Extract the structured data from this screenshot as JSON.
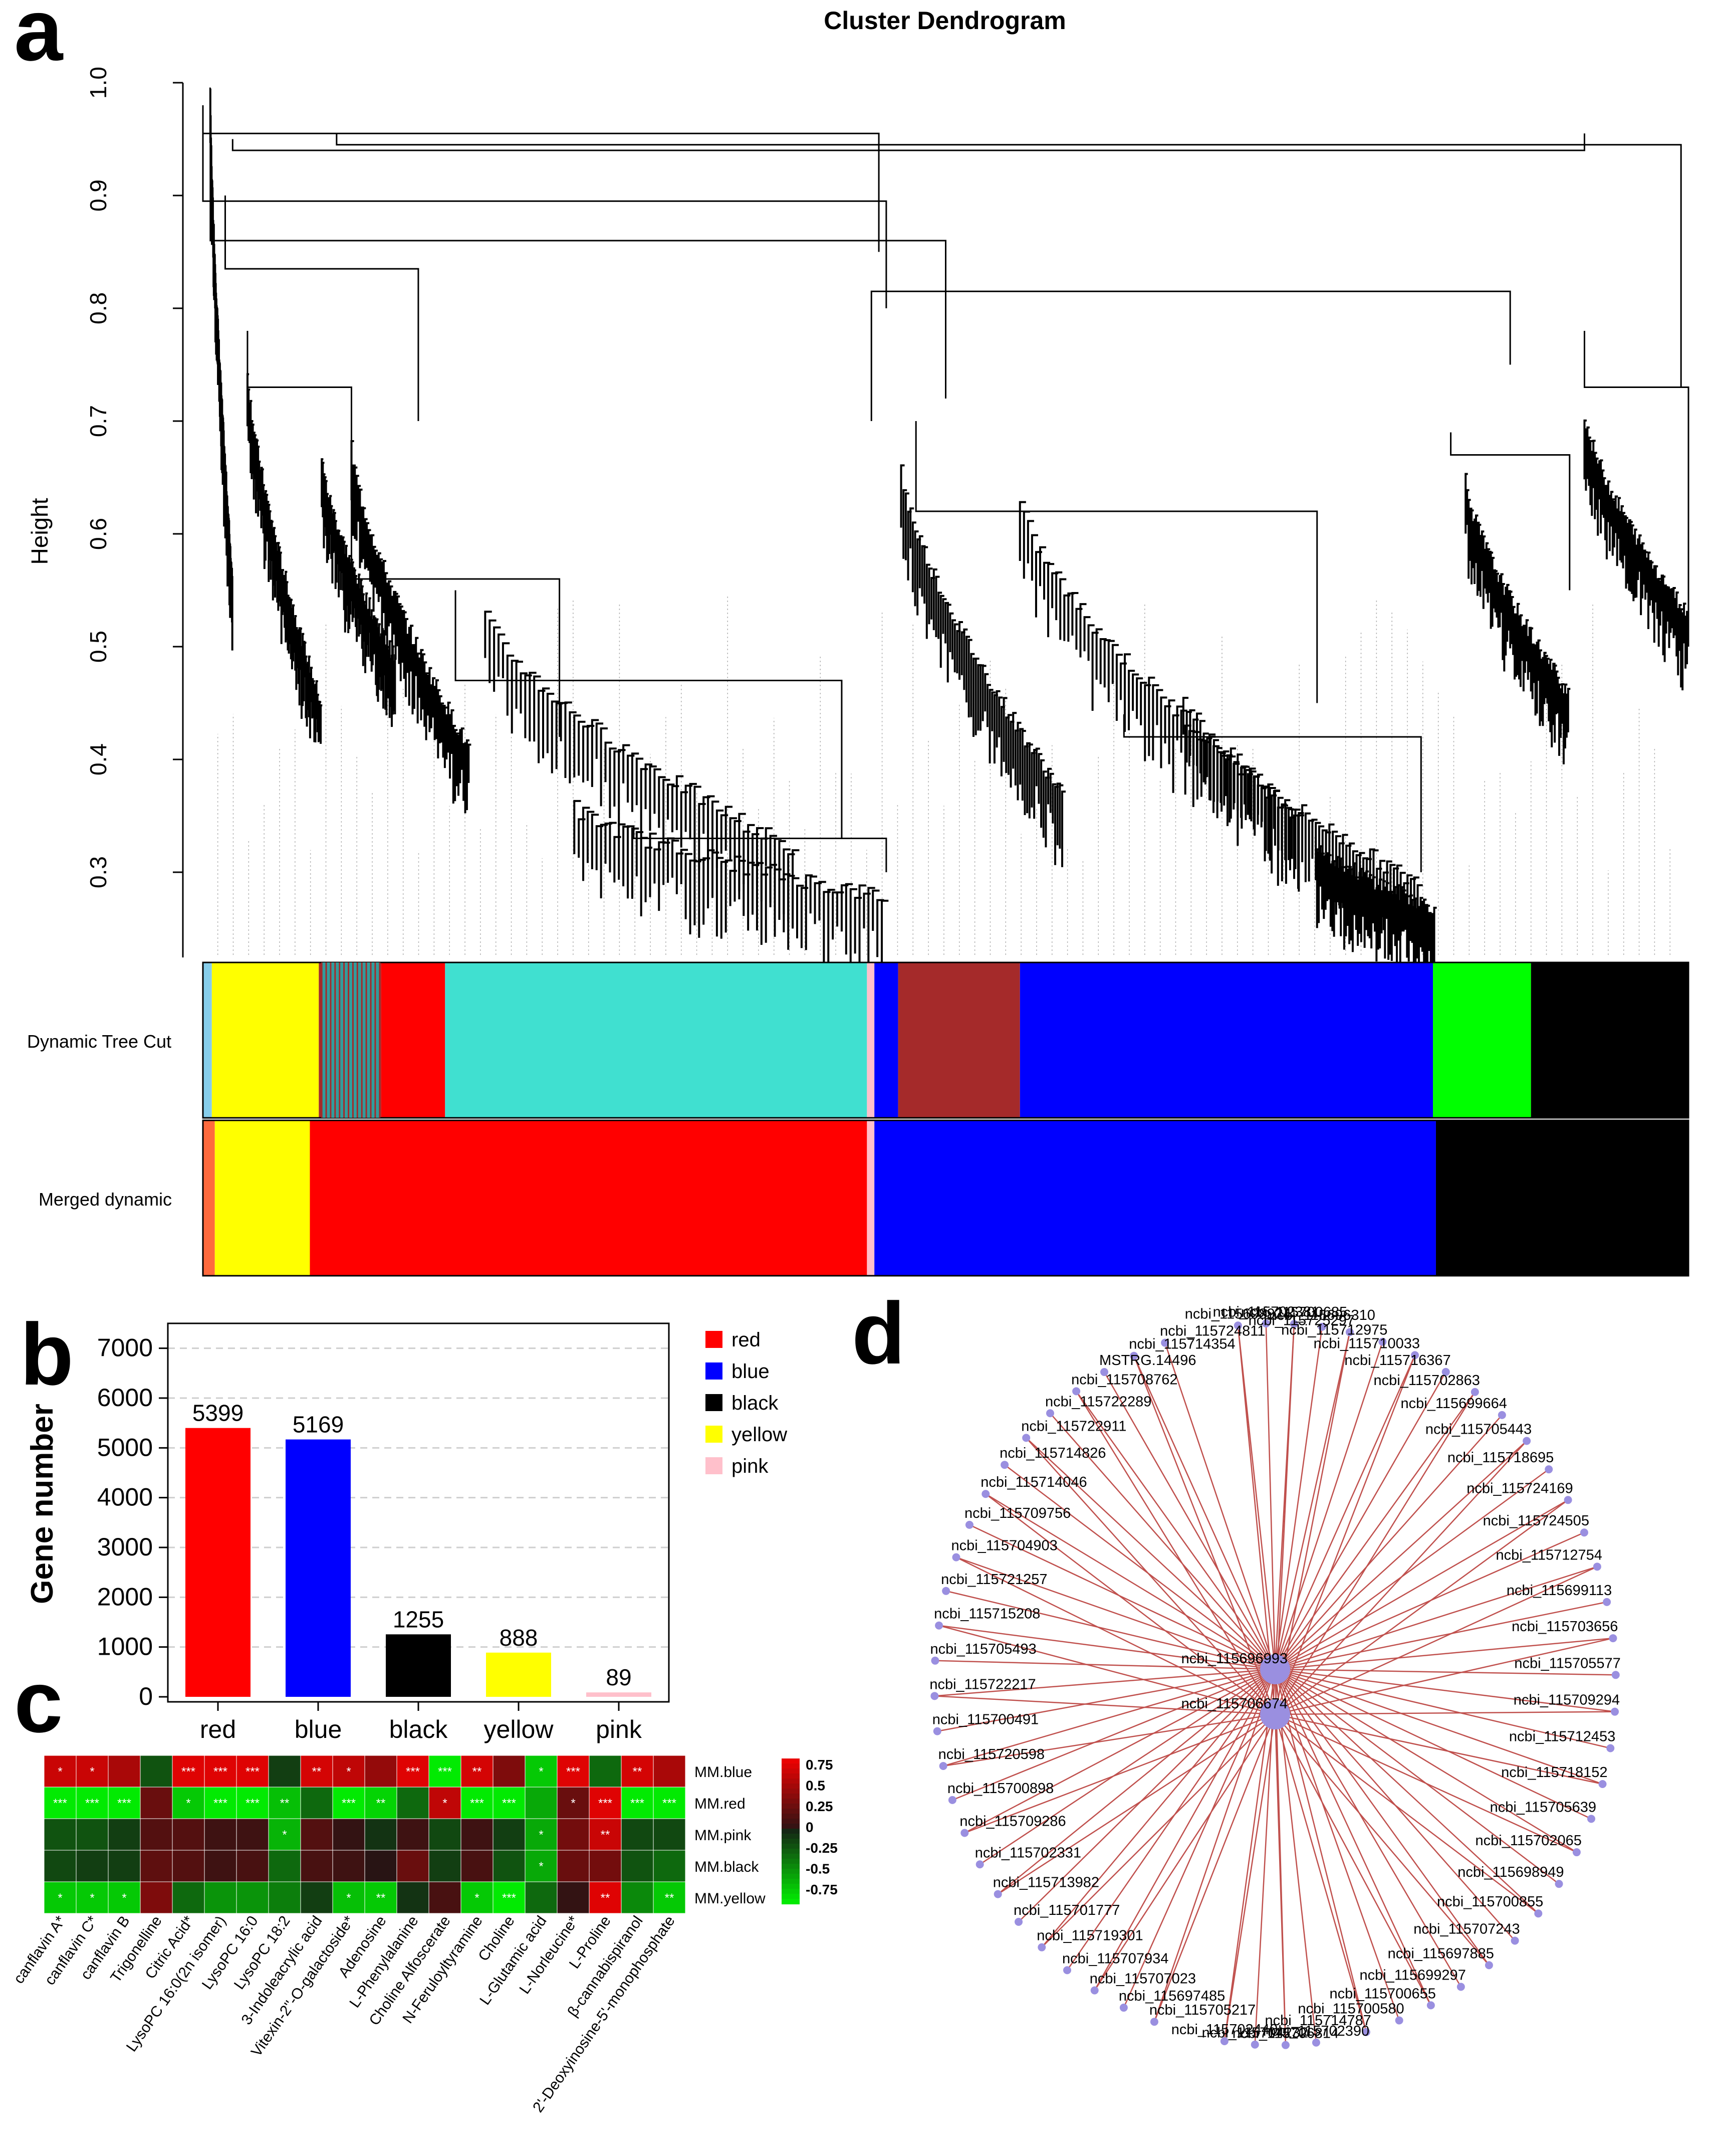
{
  "panels": {
    "a": "a",
    "b": "b",
    "c": "c",
    "d": "d"
  },
  "chart_data": [
    {
      "type": "dendrogram",
      "panel": "a",
      "title": "Cluster Dendrogram",
      "ylabel": "Height",
      "ylim": [
        0.25,
        1.0
      ],
      "yticks": [
        "0.3",
        "0.4",
        "0.5",
        "0.6",
        "0.7",
        "0.8",
        "0.9",
        "1.0"
      ],
      "tracks": [
        {
          "label": "Dynamic Tree Cut",
          "segments": [
            {
              "color": "#87ceeb",
              "from": 0,
              "to": 0.006
            },
            {
              "color": "#ffff00",
              "from": 0.006,
              "to": 0.078
            },
            {
              "color": "#a52a2a",
              "from": 0.078,
              "to": 0.12
            },
            {
              "color": "#ff0000",
              "from": 0.12,
              "to": 0.163
            },
            {
              "color": "#40e0d0",
              "from": 0.163,
              "to": 0.447
            },
            {
              "color": "#ffc0cb",
              "from": 0.447,
              "to": 0.452
            },
            {
              "color": "#0000ff",
              "from": 0.452,
              "to": 0.468
            },
            {
              "color": "#a52a2a",
              "from": 0.468,
              "to": 0.55
            },
            {
              "color": "#0000ff",
              "from": 0.55,
              "to": 0.828
            },
            {
              "color": "#00ff00",
              "from": 0.828,
              "to": 0.894
            },
            {
              "color": "#000000",
              "from": 0.894,
              "to": 1.0
            }
          ]
        },
        {
          "label": "Merged dynamic",
          "segments": [
            {
              "color": "#ff6a3d",
              "from": 0,
              "to": 0.008
            },
            {
              "color": "#ffff00",
              "from": 0.008,
              "to": 0.072
            },
            {
              "color": "#ff0000",
              "from": 0.072,
              "to": 0.447
            },
            {
              "color": "#ffc0cb",
              "from": 0.447,
              "to": 0.452
            },
            {
              "color": "#0000ff",
              "from": 0.452,
              "to": 0.83
            },
            {
              "color": "#000000",
              "from": 0.83,
              "to": 1.0
            }
          ]
        }
      ]
    },
    {
      "type": "bar",
      "panel": "b",
      "ylabel": "Gene number",
      "ylim": [
        0,
        7500
      ],
      "yticks": [
        0,
        1000,
        2000,
        3000,
        4000,
        5000,
        6000,
        7000
      ],
      "categories": [
        "red",
        "blue",
        "black",
        "yellow",
        "pink"
      ],
      "values": [
        5399,
        5169,
        1255,
        888,
        89
      ],
      "colors": [
        "#ff0000",
        "#0000ff",
        "#000000",
        "#ffff00",
        "#ffc0cb"
      ],
      "legend": [
        "red",
        "blue",
        "black",
        "yellow",
        "pink"
      ]
    },
    {
      "type": "heatmap",
      "panel": "c",
      "rows": [
        "MM.blue",
        "MM.red",
        "MM.pink",
        "MM.black",
        "MM.yellow"
      ],
      "columns": [
        "canflavin A*",
        "canflavin C*",
        "canflavin B",
        "Trigonelline",
        "Citric Acid*",
        "LysoPC 16:0(2n isomer)",
        "LysoPC 16:0",
        "LysoPC 18:2",
        "3-Indoleacrylic acid",
        "Vitexin-2''-O-galactoside*",
        "Adenosine",
        "L-Phenylalanine",
        "Choline Alfoscerate",
        "N-Feruloyltyramine",
        "Choline",
        "L-Glutamic acid",
        "L-Norleucine*",
        "L-Proline",
        "β-cannabispiranol",
        "2'-Deoxyinosine-5'-monophosphate"
      ],
      "values": [
        [
          0.75,
          0.75,
          0.6,
          -0.2,
          0.85,
          0.85,
          0.85,
          -0.1,
          0.8,
          0.7,
          0.5,
          0.85,
          -0.9,
          0.8,
          0.4,
          -0.75,
          0.85,
          -0.3,
          0.8,
          0.6
        ],
        [
          -0.9,
          -0.9,
          -0.9,
          0.3,
          -0.75,
          -0.9,
          -0.9,
          -0.7,
          -0.3,
          -0.9,
          -0.8,
          -0.3,
          0.7,
          -0.9,
          -0.9,
          -0.6,
          0.3,
          0.85,
          -0.9,
          -0.9
        ],
        [
          -0.2,
          -0.2,
          -0.1,
          0.2,
          0.2,
          0.1,
          0.1,
          -0.65,
          0.2,
          0.05,
          -0.05,
          0.1,
          -0.15,
          0.1,
          -0.1,
          -0.6,
          0.35,
          0.75,
          -0.15,
          -0.15
        ],
        [
          -0.15,
          -0.1,
          -0.1,
          0.25,
          0.2,
          0.1,
          0.15,
          -0.3,
          0.15,
          0.1,
          0.0,
          0.3,
          -0.1,
          0.15,
          -0.2,
          -0.6,
          0.3,
          0.35,
          -0.2,
          -0.3
        ],
        [
          -0.75,
          -0.75,
          -0.75,
          0.4,
          -0.3,
          -0.5,
          -0.5,
          -0.4,
          -0.1,
          -0.7,
          -0.75,
          -0.05,
          0.15,
          -0.75,
          -0.9,
          -0.3,
          0.05,
          0.85,
          -0.45,
          -0.75
        ]
      ],
      "stars": [
        [
          "*",
          "*",
          "",
          "",
          "***",
          "***",
          "***",
          "",
          "**",
          "*",
          "",
          "***",
          "***",
          "**",
          "",
          "*",
          "***",
          "",
          "**",
          ""
        ],
        [
          "***",
          "***",
          "***",
          "",
          "*",
          "***",
          "***",
          "**",
          "",
          "***",
          "**",
          "",
          "*",
          "***",
          "***",
          "",
          "*",
          "***",
          "***",
          "***"
        ],
        [
          "",
          "",
          "",
          "",
          "",
          "",
          "",
          "*",
          "",
          "",
          "",
          "",
          "",
          "",
          "",
          "*",
          "",
          "**",
          "",
          ""
        ],
        [
          "",
          "",
          "",
          "",
          "",
          "",
          "",
          "",
          "",
          "",
          "",
          "",
          "",
          "",
          "",
          "*",
          "",
          "",
          "",
          ""
        ],
        [
          "*",
          "*",
          "*",
          "",
          "",
          "",
          "",
          "",
          "",
          "*",
          "**",
          "",
          "",
          "*",
          "***",
          "",
          "",
          "**",
          "",
          "**"
        ]
      ],
      "scale": {
        "ticks": [
          "0.75",
          "0.5",
          "0.25",
          "0",
          "-0.25",
          "-0.5",
          "-0.75"
        ],
        "high": "#ff0000",
        "mid": "#000000",
        "low": "#00ff00"
      }
    },
    {
      "type": "network",
      "panel": "d",
      "hubs": [
        "ncbi_115696993",
        "ncbi_115706674"
      ],
      "nodes_right": [
        "ncbi_115712975",
        "ncbi_115710033",
        "ncbi_115716367",
        "ncbi_115702863",
        "ncbi_115699664",
        "ncbi_115705443",
        "ncbi_115718695",
        "ncbi_115724169",
        "ncbi_115724505",
        "ncbi_115712754",
        "ncbi_115699113",
        "ncbi_115703656",
        "ncbi_115705577",
        "ncbi_115709294",
        "ncbi_115712453",
        "ncbi_115718152",
        "ncbi_115705639",
        "ncbi_115702065",
        "ncbi_115698949",
        "ncbi_115700855",
        "ncbi_115707243",
        "ncbi_115697885",
        "ncbi_115699297",
        "ncbi_115700655",
        "ncbi_115700580",
        "ncbi_115714787"
      ],
      "nodes_left": [
        "ncbi_115724811",
        "ncbi_115714354",
        "MSTRG.14496",
        "ncbi_115708762",
        "ncbi_115722289",
        "ncbi_115722911",
        "ncbi_115714826",
        "ncbi_115714046",
        "ncbi_115709756",
        "ncbi_115704903",
        "ncbi_115721257",
        "ncbi_115715208",
        "ncbi_115705493",
        "ncbi_115722217",
        "ncbi_115700491",
        "ncbi_115720598",
        "ncbi_115700898",
        "ncbi_115709286",
        "ncbi_115702331",
        "ncbi_115713982",
        "ncbi_115701777",
        "ncbi_115719301",
        "ncbi_115707934",
        "ncbi_115707023",
        "ncbi_115697485",
        "ncbi_115705217"
      ],
      "nodes_top": [
        "ncbi_115698924",
        "ncbi_115702381",
        "ncbi_115700685",
        "ncbi_115696310",
        "ncbi_115725297"
      ],
      "nodes_bottom": [
        "ncbi_115702390",
        "ncbi_115706814",
        "ncbi_115704232",
        "ncbi_115702440"
      ]
    }
  ]
}
